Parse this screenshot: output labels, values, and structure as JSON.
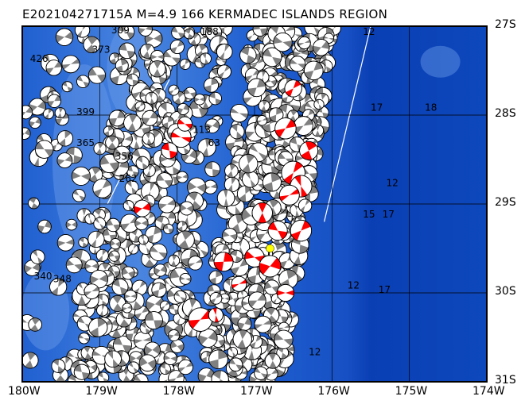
{
  "title": "E202104271715A M=4.9 166 KERMADEC ISLANDS REGION",
  "map": {
    "lon_range": [
      -180,
      -174
    ],
    "lat_range": [
      -31,
      -27
    ],
    "lon_labels": [
      "180W",
      "179W",
      "178W",
      "177W",
      "176W",
      "175W",
      "174W"
    ],
    "lat_labels": [
      "27S",
      "28S",
      "29S",
      "30S",
      "31S"
    ],
    "colors": {
      "deep": "#0a3fb4",
      "mid": "#1f5fd0",
      "shallow": "#4a86e0",
      "compression": "#808080",
      "highlight": "#ff0000",
      "epicenter": "#ffff00"
    },
    "epicenter": {
      "lon": -176.8,
      "lat": -29.5
    },
    "highlight_events": [
      {
        "lon": -177.95,
        "lat": -28.25
      },
      {
        "lon": -178.1,
        "lat": -28.4
      },
      {
        "lon": -177.9,
        "lat": -28.1
      },
      {
        "lon": -176.6,
        "lat": -28.15
      },
      {
        "lon": -176.3,
        "lat": -28.4
      },
      {
        "lon": -176.5,
        "lat": -28.65
      },
      {
        "lon": -176.4,
        "lat": -28.8
      },
      {
        "lon": -176.9,
        "lat": -29.1
      },
      {
        "lon": -176.7,
        "lat": -29.3
      },
      {
        "lon": -177.0,
        "lat": -29.6
      },
      {
        "lon": -177.4,
        "lat": -29.65
      },
      {
        "lon": -177.2,
        "lat": -29.9
      },
      {
        "lon": -176.8,
        "lat": -29.7
      },
      {
        "lon": -177.7,
        "lat": -30.3
      },
      {
        "lon": -177.5,
        "lat": -30.25
      },
      {
        "lon": -176.5,
        "lat": -27.7
      },
      {
        "lon": -176.6,
        "lat": -30.0
      },
      {
        "lon": -176.4,
        "lat": -29.3
      },
      {
        "lon": -178.45,
        "lat": -29.05
      },
      {
        "lon": -176.55,
        "lat": -28.9
      }
    ],
    "event_labels": [
      {
        "text": "426",
        "lon": -179.9,
        "lat": -27.4
      },
      {
        "text": "373",
        "lon": -179.1,
        "lat": -27.3
      },
      {
        "text": "309",
        "lon": -178.85,
        "lat": -27.08
      },
      {
        "text": "399",
        "lon": -179.3,
        "lat": -28.0
      },
      {
        "text": "365",
        "lon": -179.3,
        "lat": -28.35
      },
      {
        "text": "356",
        "lon": -178.8,
        "lat": -28.5
      },
      {
        "text": "262",
        "lon": -178.75,
        "lat": -28.75
      },
      {
        "text": "340",
        "lon": -179.85,
        "lat": -29.85
      },
      {
        "text": "348",
        "lon": -179.6,
        "lat": -29.88
      },
      {
        "text": "188",
        "lon": -177.7,
        "lat": -27.1
      },
      {
        "text": "113",
        "lon": -177.8,
        "lat": -28.2
      },
      {
        "text": "63",
        "lon": -177.6,
        "lat": -28.35
      },
      {
        "text": "12",
        "lon": -175.6,
        "lat": -27.1
      },
      {
        "text": "17",
        "lon": -175.5,
        "lat": -27.95
      },
      {
        "text": "18",
        "lon": -174.8,
        "lat": -27.95
      },
      {
        "text": "12",
        "lon": -175.3,
        "lat": -28.8
      },
      {
        "text": "15",
        "lon": -175.6,
        "lat": -29.15
      },
      {
        "text": "17",
        "lon": -175.35,
        "lat": -29.15
      },
      {
        "text": "12",
        "lon": -175.8,
        "lat": -29.95
      },
      {
        "text": "17",
        "lon": -175.4,
        "lat": -30.0
      },
      {
        "text": "12",
        "lon": -176.3,
        "lat": -30.7
      }
    ]
  }
}
